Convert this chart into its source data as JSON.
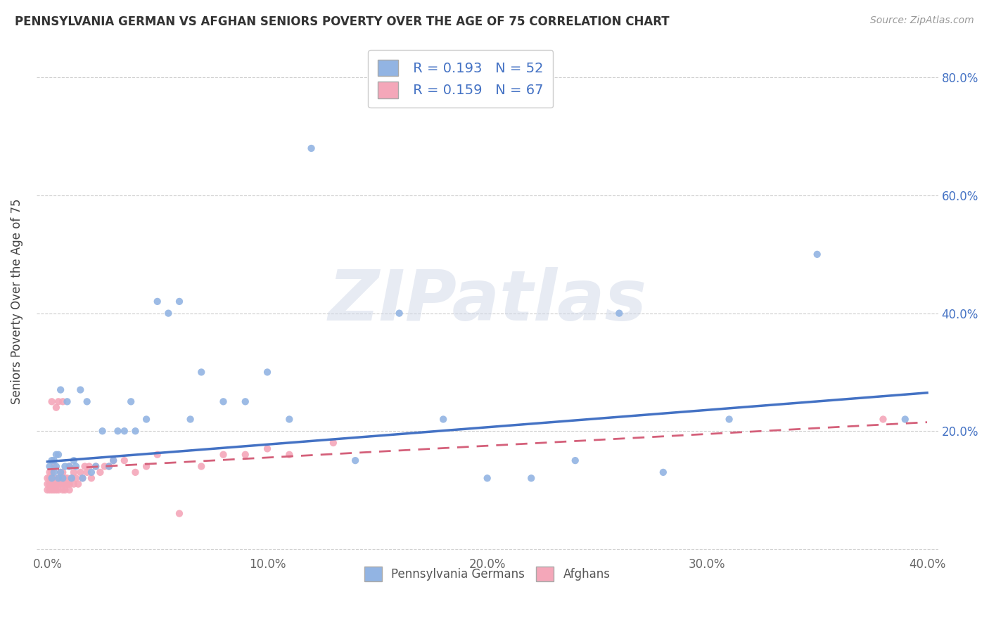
{
  "title": "PENNSYLVANIA GERMAN VS AFGHAN SENIORS POVERTY OVER THE AGE OF 75 CORRELATION CHART",
  "source": "Source: ZipAtlas.com",
  "ylabel": "Seniors Poverty Over the Age of 75",
  "xlim": [
    -0.005,
    0.405
  ],
  "ylim": [
    -0.01,
    0.85
  ],
  "x_ticks": [
    0.0,
    0.1,
    0.2,
    0.3,
    0.4
  ],
  "x_tick_labels": [
    "0.0%",
    "10.0%",
    "20.0%",
    "30.0%",
    "40.0%"
  ],
  "y_ticks": [
    0.0,
    0.2,
    0.4,
    0.6,
    0.8
  ],
  "y_tick_labels_left": [
    "",
    "",
    "",
    "",
    ""
  ],
  "y_tick_labels_right": [
    "",
    "20.0%",
    "40.0%",
    "60.0%",
    "80.0%"
  ],
  "pa_german_color": "#92b4e3",
  "afghan_color": "#f4a7b9",
  "pa_german_line_color": "#4472c4",
  "afghan_line_color": "#d4607a",
  "pa_german_R": 0.193,
  "pa_german_N": 52,
  "afghan_R": 0.159,
  "afghan_N": 67,
  "legend_text_color": "#4472c4",
  "watermark": "ZIPatlas",
  "pa_german_x": [
    0.001,
    0.002,
    0.002,
    0.003,
    0.003,
    0.004,
    0.004,
    0.005,
    0.005,
    0.006,
    0.006,
    0.007,
    0.008,
    0.009,
    0.01,
    0.011,
    0.012,
    0.013,
    0.015,
    0.016,
    0.018,
    0.02,
    0.022,
    0.025,
    0.028,
    0.03,
    0.032,
    0.035,
    0.038,
    0.04,
    0.045,
    0.05,
    0.055,
    0.06,
    0.065,
    0.07,
    0.08,
    0.09,
    0.1,
    0.11,
    0.12,
    0.14,
    0.16,
    0.18,
    0.2,
    0.22,
    0.24,
    0.26,
    0.28,
    0.31,
    0.35,
    0.39
  ],
  "pa_german_y": [
    0.14,
    0.15,
    0.12,
    0.13,
    0.15,
    0.16,
    0.14,
    0.12,
    0.16,
    0.13,
    0.27,
    0.12,
    0.14,
    0.25,
    0.14,
    0.12,
    0.15,
    0.14,
    0.27,
    0.12,
    0.25,
    0.13,
    0.14,
    0.2,
    0.14,
    0.15,
    0.2,
    0.2,
    0.25,
    0.2,
    0.22,
    0.42,
    0.4,
    0.42,
    0.22,
    0.3,
    0.25,
    0.25,
    0.3,
    0.22,
    0.68,
    0.15,
    0.4,
    0.22,
    0.12,
    0.12,
    0.15,
    0.4,
    0.13,
    0.22,
    0.5,
    0.22
  ],
  "afghan_x": [
    0.0,
    0.0,
    0.0,
    0.001,
    0.001,
    0.001,
    0.001,
    0.002,
    0.002,
    0.002,
    0.002,
    0.002,
    0.003,
    0.003,
    0.003,
    0.003,
    0.004,
    0.004,
    0.004,
    0.005,
    0.005,
    0.005,
    0.005,
    0.006,
    0.006,
    0.006,
    0.007,
    0.007,
    0.007,
    0.007,
    0.007,
    0.008,
    0.008,
    0.008,
    0.009,
    0.009,
    0.01,
    0.01,
    0.01,
    0.011,
    0.012,
    0.012,
    0.013,
    0.014,
    0.015,
    0.016,
    0.017,
    0.018,
    0.019,
    0.02,
    0.022,
    0.024,
    0.026,
    0.028,
    0.03,
    0.035,
    0.04,
    0.045,
    0.05,
    0.06,
    0.07,
    0.08,
    0.09,
    0.1,
    0.11,
    0.13,
    0.38
  ],
  "afghan_y": [
    0.1,
    0.11,
    0.12,
    0.1,
    0.11,
    0.12,
    0.13,
    0.1,
    0.11,
    0.12,
    0.13,
    0.25,
    0.1,
    0.11,
    0.12,
    0.14,
    0.1,
    0.11,
    0.24,
    0.1,
    0.11,
    0.12,
    0.25,
    0.11,
    0.12,
    0.13,
    0.1,
    0.11,
    0.12,
    0.13,
    0.25,
    0.1,
    0.11,
    0.12,
    0.11,
    0.12,
    0.1,
    0.11,
    0.14,
    0.12,
    0.11,
    0.13,
    0.12,
    0.11,
    0.13,
    0.12,
    0.14,
    0.13,
    0.14,
    0.12,
    0.14,
    0.13,
    0.14,
    0.14,
    0.15,
    0.15,
    0.13,
    0.14,
    0.16,
    0.06,
    0.14,
    0.16,
    0.16,
    0.17,
    0.16,
    0.18,
    0.22
  ],
  "pa_line_x0": 0.0,
  "pa_line_y0": 0.148,
  "pa_line_x1": 0.4,
  "pa_line_y1": 0.265,
  "af_line_x0": 0.0,
  "af_line_y0": 0.135,
  "af_line_x1": 0.4,
  "af_line_y1": 0.215
}
